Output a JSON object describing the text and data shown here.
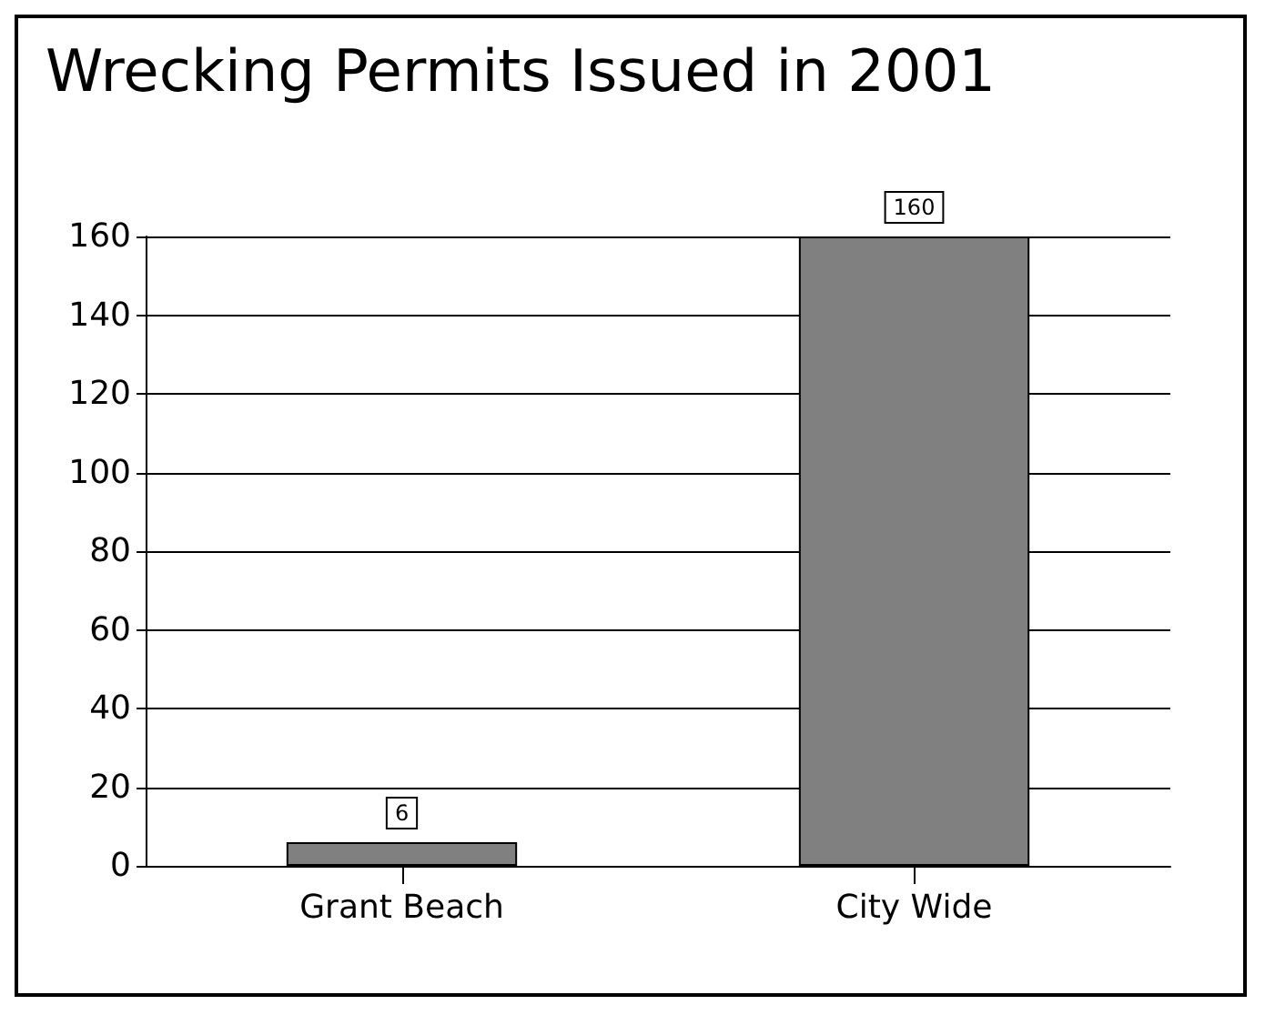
{
  "chart_data": {
    "type": "bar",
    "title": "Wrecking Permits Issued in 2001",
    "categories": [
      "Grant Beach",
      "City Wide"
    ],
    "values": [
      6,
      160
    ],
    "color": "#808080",
    "ylim": [
      0,
      160
    ],
    "yticks": [
      0,
      20,
      40,
      60,
      80,
      100,
      120,
      140,
      160
    ],
    "grid": "y",
    "data_labels": true
  }
}
